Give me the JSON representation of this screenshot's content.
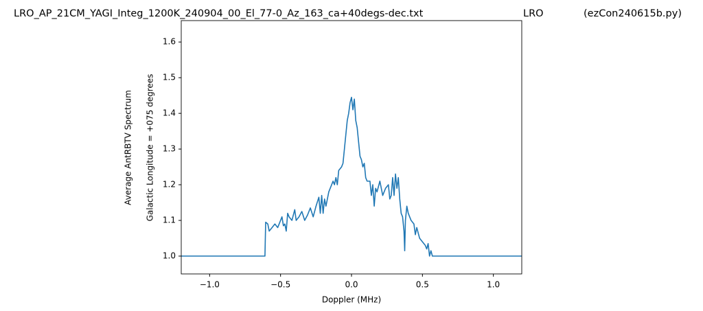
{
  "chart_data": {
    "type": "line",
    "title": [
      "LRO_AP_21CM_YAGI_Integ_1200K_240904_00_El_77-0_Az_163_ca+40degs-dec.txt",
      "LRO",
      "(ezCon240615b.py)"
    ],
    "xlabel": "Doppler (MHz)",
    "ylabel": [
      "Average AntRBTV Spectrum",
      "Galactic Longitude = +075 degrees"
    ],
    "x": [
      -1.2,
      -0.61,
      -0.605,
      -0.59,
      -0.58,
      -0.56,
      -0.54,
      -0.52,
      -0.5,
      -0.49,
      -0.48,
      -0.47,
      -0.46,
      -0.45,
      -0.44,
      -0.42,
      -0.4,
      -0.39,
      -0.37,
      -0.35,
      -0.33,
      -0.31,
      -0.29,
      -0.27,
      -0.25,
      -0.23,
      -0.22,
      -0.21,
      -0.2,
      -0.19,
      -0.18,
      -0.16,
      -0.14,
      -0.13,
      -0.12,
      -0.11,
      -0.1,
      -0.09,
      -0.07,
      -0.06,
      -0.05,
      -0.04,
      -0.03,
      -0.02,
      -0.01,
      0.0,
      0.01,
      0.02,
      0.03,
      0.04,
      0.05,
      0.06,
      0.07,
      0.08,
      0.09,
      0.1,
      0.11,
      0.13,
      0.14,
      0.15,
      0.16,
      0.17,
      0.18,
      0.2,
      0.22,
      0.24,
      0.26,
      0.27,
      0.28,
      0.29,
      0.3,
      0.31,
      0.32,
      0.33,
      0.34,
      0.35,
      0.36,
      0.37,
      0.375,
      0.38,
      0.39,
      0.4,
      0.42,
      0.44,
      0.45,
      0.46,
      0.48,
      0.5,
      0.52,
      0.53,
      0.54,
      0.55,
      0.56,
      0.57,
      1.2
    ],
    "series": [
      {
        "color": "#1f77b4",
        "values": [
          1.0,
          1.0,
          1.095,
          1.09,
          1.07,
          1.08,
          1.09,
          1.08,
          1.1,
          1.11,
          1.085,
          1.09,
          1.07,
          1.12,
          1.11,
          1.1,
          1.13,
          1.1,
          1.11,
          1.125,
          1.1,
          1.115,
          1.135,
          1.11,
          1.14,
          1.165,
          1.12,
          1.17,
          1.12,
          1.16,
          1.14,
          1.18,
          1.2,
          1.21,
          1.2,
          1.22,
          1.2,
          1.24,
          1.25,
          1.26,
          1.3,
          1.34,
          1.38,
          1.4,
          1.43,
          1.445,
          1.41,
          1.44,
          1.38,
          1.36,
          1.32,
          1.28,
          1.27,
          1.25,
          1.26,
          1.22,
          1.21,
          1.21,
          1.17,
          1.2,
          1.14,
          1.19,
          1.18,
          1.21,
          1.17,
          1.19,
          1.2,
          1.16,
          1.17,
          1.22,
          1.17,
          1.23,
          1.19,
          1.22,
          1.16,
          1.12,
          1.11,
          1.07,
          1.015,
          1.1,
          1.14,
          1.12,
          1.1,
          1.09,
          1.06,
          1.08,
          1.05,
          1.04,
          1.03,
          1.02,
          1.035,
          1.0,
          1.015,
          1.0,
          1.0
        ]
      }
    ],
    "xlim": [
      -1.2,
      1.2
    ],
    "ylim": [
      0.95,
      1.66
    ],
    "xticks": [
      {
        "value": -1.0,
        "label": "−1.0"
      },
      {
        "value": -0.5,
        "label": "−0.5"
      },
      {
        "value": 0.0,
        "label": "0.0"
      },
      0.5,
      {
        "value": 1.0,
        "label": "1.0"
      }
    ],
    "yticks": [
      {
        "value": 1.0,
        "label": "1.0"
      },
      1.1,
      1.2,
      1.3,
      1.4,
      1.5,
      1.6
    ]
  }
}
